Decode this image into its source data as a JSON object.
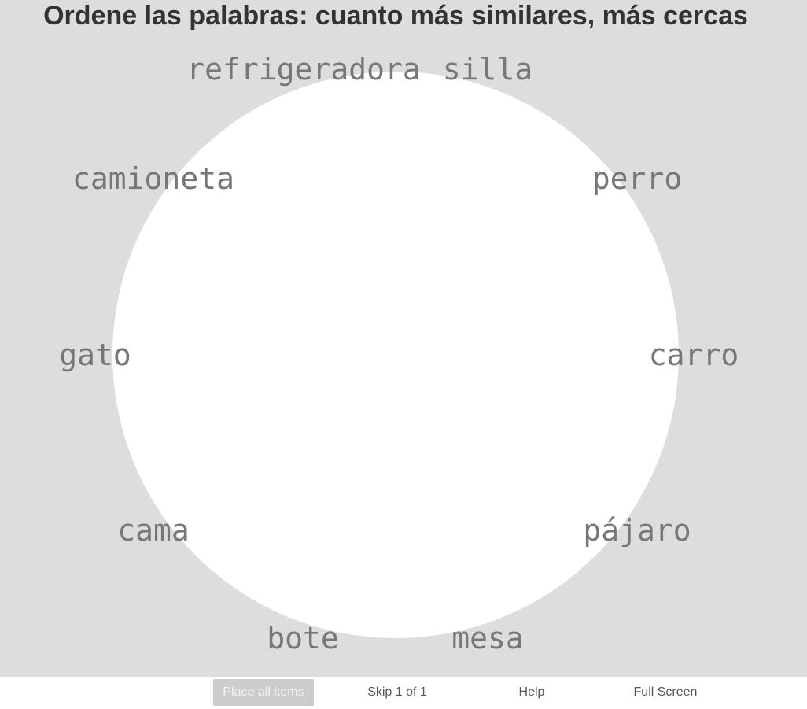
{
  "instruction": "Ordene las palabras: cuanto más similares, más cercas",
  "words": [
    {
      "id": "refrigeradora",
      "label": "refrigeradora"
    },
    {
      "id": "silla",
      "label": "silla"
    },
    {
      "id": "camioneta",
      "label": "camioneta"
    },
    {
      "id": "perro",
      "label": "perro"
    },
    {
      "id": "gato",
      "label": "gato"
    },
    {
      "id": "carro",
      "label": "carro"
    },
    {
      "id": "cama",
      "label": "cama"
    },
    {
      "id": "pajaro",
      "label": "pájaro"
    },
    {
      "id": "bote",
      "label": "bote"
    },
    {
      "id": "mesa",
      "label": "mesa"
    }
  ],
  "toolbar": {
    "place_all": "Place all items",
    "skip": "Skip 1 of 1",
    "help": "Help",
    "fullscreen": "Full Screen"
  },
  "colors": {
    "stage_background": "#dddddd",
    "arena_background": "#ffffff",
    "word_color": "#777777",
    "title_color": "#333333",
    "place_all_disabled": "#cccccc"
  }
}
